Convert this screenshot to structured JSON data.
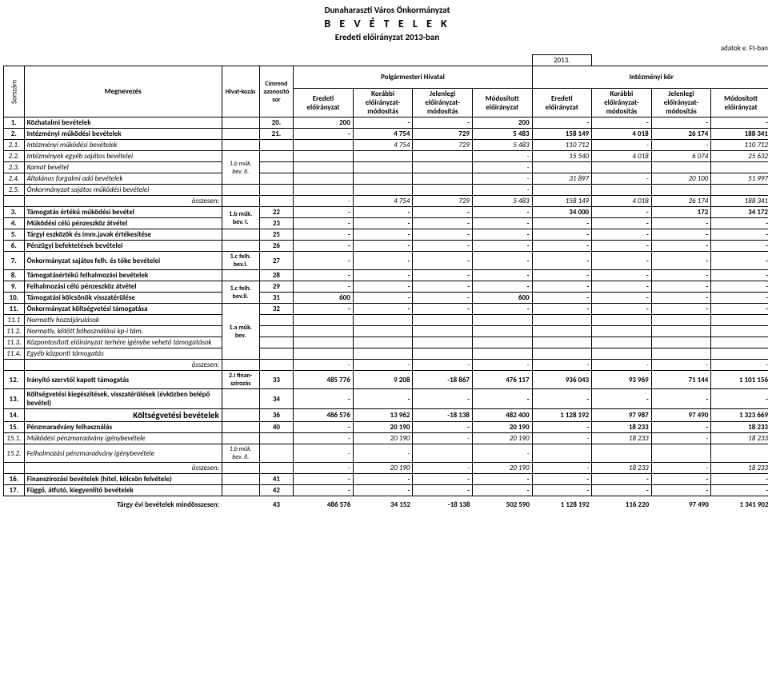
{
  "header": {
    "org": "Dunaharaszti Város Önkormányzat",
    "title": "B E V É T E L E K",
    "subtitle": "Eredeti előirányzat 2013-ban",
    "unit": "adatok e. Ft-ban",
    "year": "2013."
  },
  "columns": {
    "sorszam": "Sorszám",
    "megnevezes": "Megnevezés",
    "hivatkozas": "Hivat-kozás",
    "cimrend": "Címrend azonosító sor",
    "group_polg": "Polgármesteri Hivatal",
    "group_int": "Intézményi kör",
    "c1": "Eredeti előirányzat",
    "c2": "Korábbi előirányzat-módosítás",
    "c3": "Jelenlegi előirányzat-módosítás",
    "c4": "Módosított előirányzat",
    "c5": "Eredeti előirányzat",
    "c6": "Korábbi előirányzat-módosítás",
    "c7": "Jelenlegi előirányzat-módosítás",
    "c8": "Módosított előirányzat"
  },
  "rows": [
    {
      "n": "1.",
      "name": "Közhatalmi bevételek",
      "hiv": "",
      "cim": "20.",
      "v": [
        "200",
        "-",
        "-",
        "200",
        "-",
        "-",
        "-",
        "-"
      ],
      "bold": true
    },
    {
      "n": "2.",
      "name": "Intézményi működési bevételek",
      "hiv": "",
      "cim": "21.",
      "v": [
        "-",
        "4 754",
        "729",
        "5 483",
        "158 149",
        "4 018",
        "26 174",
        "188 341"
      ],
      "bold": true
    },
    {
      "n": "2.1.",
      "name": "Intézményi működési bevételek",
      "hiv": "",
      "cim": "",
      "v": [
        "",
        "4 754",
        "729",
        "5 483",
        "110 712",
        "-",
        "-",
        "110 712"
      ],
      "ital": true
    },
    {
      "n": "2.2.",
      "name": "Intézmények egyéb sajátos bevételei",
      "hiv": "1.b műk. bev. II.",
      "cim": "",
      "v": [
        "",
        "",
        "",
        "-",
        "15 540",
        "4 018",
        "6 074",
        "25 632"
      ],
      "ital": true,
      "hiv_rowspan": 3
    },
    {
      "n": "2.3.",
      "name": "Kamat bevétel",
      "hiv": "",
      "cim": "",
      "v": [
        "",
        "",
        "",
        "-",
        "",
        "",
        "",
        ""
      ],
      "ital": true,
      "skip_hiv": true
    },
    {
      "n": "2.4.",
      "name": "Általános forgalmi adó bevételek",
      "hiv": "",
      "cim": "",
      "v": [
        "",
        "",
        "",
        "-",
        "31 897",
        "-",
        "20 100",
        "51 997"
      ],
      "ital": true,
      "skip_hiv": true
    },
    {
      "n": "2.5.",
      "name": "Önkormányzat sajátos működési bevételei",
      "hiv": "",
      "cim": "",
      "v": [
        "",
        "",
        "",
        "-",
        "",
        "",
        "",
        ""
      ],
      "ital": true
    },
    {
      "ossz": true,
      "name": "összesen:",
      "v": [
        "-",
        "4 754",
        "729",
        "5 483",
        "158 149",
        "4 018",
        "26 174",
        "188 341"
      ],
      "ital": true
    },
    {
      "n": "3.",
      "name": "Támogatás értékű működési bevétel",
      "hiv": "1.b műk. bev. I.",
      "cim": "22",
      "v": [
        "-",
        "-",
        "-",
        "-",
        "34 000",
        "-",
        "172",
        "34 172"
      ],
      "bold": true,
      "hiv_rowspan": 2
    },
    {
      "n": "4.",
      "name": "Működési célú pénzeszköz átvétel",
      "cim": "23",
      "v": [
        "-",
        "-",
        "-",
        "-",
        "-",
        "-",
        "-",
        "-"
      ],
      "bold": true,
      "skip_hiv": true
    },
    {
      "n": "5.",
      "name": "Tárgyi eszközök és imm.javak értékesítése",
      "hiv": "",
      "cim": "25",
      "v": [
        "-",
        "-",
        "-",
        "-",
        "-",
        "-",
        "-",
        "-"
      ],
      "bold": true
    },
    {
      "n": "6.",
      "name": "Pénzügyi befektetések bevételei",
      "hiv": "",
      "cim": "26",
      "v": [
        "-",
        "-",
        "-",
        "-",
        "-",
        "-",
        "-",
        "-"
      ],
      "bold": true
    },
    {
      "n": "7.",
      "name": "Önkormányzat sajátos felh. és tőke bevételei",
      "hiv": "1.c felh. bev.I.",
      "cim": "27",
      "v": [
        "-",
        "-",
        "-",
        "-",
        "-",
        "-",
        "-",
        "-"
      ],
      "bold": true
    },
    {
      "n": "8.",
      "name": "Támogatásértékű felhalmozási bevételek",
      "hiv": "",
      "cim": "28",
      "v": [
        "-",
        "-",
        "-",
        "-",
        "-",
        "-",
        "-",
        "-"
      ],
      "bold": true
    },
    {
      "n": "9.",
      "name": "Felhalmozási célú pénzeszköz átvétel",
      "hiv": "1.c felh. bev.II.",
      "cim": "29",
      "v": [
        "-",
        "-",
        "-",
        "-",
        "-",
        "-",
        "-",
        "-"
      ],
      "bold": true,
      "hiv_rowspan": 2
    },
    {
      "n": "10.",
      "name": "Támogatási kölcsönök visszatérülése",
      "cim": "31",
      "v": [
        "600",
        "-",
        "-",
        "600",
        "-",
        "-",
        "-",
        "-"
      ],
      "bold": true,
      "skip_hiv": true
    },
    {
      "n": "11.",
      "name": "Önkormányzat költségvetési támogatása",
      "hiv": "1.a műk. bev.",
      "cim": "32",
      "v": [
        "-",
        "-",
        "-",
        "-",
        "-",
        "-",
        "-",
        "-"
      ],
      "bold": true,
      "hiv_rowspan": 5
    },
    {
      "n": "11.1",
      "name": "Normatív hozzájárulások",
      "cim": "",
      "v": [
        "",
        "",
        "",
        "",
        "",
        "",
        "",
        ""
      ],
      "ital": true,
      "skip_hiv": true
    },
    {
      "n": "11.2.",
      "name": "Normatív, kötött felhasználású kp-i tám.",
      "cim": "",
      "v": [
        "",
        "",
        "",
        "",
        "",
        "",
        "",
        ""
      ],
      "ital": true,
      "skip_hiv": true
    },
    {
      "n": "11.3.",
      "name": "Központosított előirányzat terhére igénybe vehető támogatások",
      "cim": "",
      "v": [
        "",
        "",
        "",
        "",
        "",
        "",
        "",
        ""
      ],
      "ital": true,
      "skip_hiv": true
    },
    {
      "n": "11.4.",
      "name": "Egyéb központi támogatás",
      "cim": "",
      "v": [
        "",
        "",
        "",
        "",
        "",
        "",
        "",
        ""
      ],
      "ital": true,
      "skip_hiv": true
    },
    {
      "ossz": true,
      "name": "összesen:",
      "v": [
        "-",
        "-",
        "-",
        "-",
        "-",
        "-",
        "-",
        "-"
      ],
      "ital": true
    },
    {
      "n": "12.",
      "name": "Irányító szervtől kapott támogatás",
      "hiv": "2.i finan-szírozás",
      "cim": "33",
      "v": [
        "485 776",
        "9 208",
        "-18 867",
        "476 117",
        "936 043",
        "93 969",
        "71 144",
        "1 101 156"
      ],
      "bold": true
    },
    {
      "n": "13.",
      "name": "Költségvetési kiegészítések, visszatérülések (évközben belépő bevétel)",
      "hiv": "",
      "cim": "34",
      "v": [
        "-",
        "-",
        "-",
        "-",
        "-",
        "-",
        "-",
        "-"
      ],
      "bold": true
    },
    {
      "n": "14.",
      "name": "Költségvetési bevételek",
      "hiv": "",
      "cim": "36",
      "v": [
        "486 576",
        "13 962",
        "-18 138",
        "482 400",
        "1 128 192",
        "97 987",
        "97 490",
        "1 323 669"
      ],
      "bold": true,
      "big": true
    },
    {
      "n": "15.",
      "name": "Pénzmaradvány felhasználás",
      "hiv": "",
      "cim": "40",
      "v": [
        "-",
        "20 190",
        "-",
        "20 190",
        "-",
        "18 233",
        "-",
        "18 233"
      ],
      "bold": true
    },
    {
      "n": "15.1.",
      "name": "Működési pénzmaradvány igénybevétele",
      "hiv": "",
      "cim": "",
      "v": [
        "-",
        "20 190",
        "-",
        "20 190",
        "-",
        "18 233",
        "-",
        "18 233"
      ],
      "ital": true
    },
    {
      "n": "15.2.",
      "name": "Felhalmozási pénzmaradvány igénybevétele",
      "hiv": "1.b műk. bev. II.",
      "cim": "",
      "v": [
        "-",
        "-",
        "",
        "-",
        "",
        "",
        "",
        ""
      ],
      "ital": true
    },
    {
      "ossz": true,
      "name": "összesen:",
      "v": [
        "-",
        "20 190",
        "-",
        "20 190",
        "-",
        "18 233",
        "-",
        "18 233"
      ],
      "ital": true
    },
    {
      "n": "16.",
      "name": "Finanszírozási bevételek (hitel, kölcsön felvétele)",
      "hiv": "",
      "cim": "41",
      "v": [
        "-",
        "-",
        "-",
        "-",
        "-",
        "-",
        "-",
        "-"
      ],
      "bold": true
    },
    {
      "n": "17.",
      "name": "Függő, átfutó, kiegyenlítő bevételek",
      "hiv": "",
      "cim": "42",
      "v": [
        "-",
        "-",
        "-",
        "-",
        "-",
        "-",
        "-",
        "-"
      ],
      "bold": true
    }
  ],
  "total": {
    "label": "Tárgy évi bevételek mindösszesen:",
    "cim": "43",
    "v": [
      "486 576",
      "34 152",
      "-18 138",
      "502 590",
      "1 128 192",
      "116 220",
      "97 490",
      "1 341 902"
    ]
  }
}
